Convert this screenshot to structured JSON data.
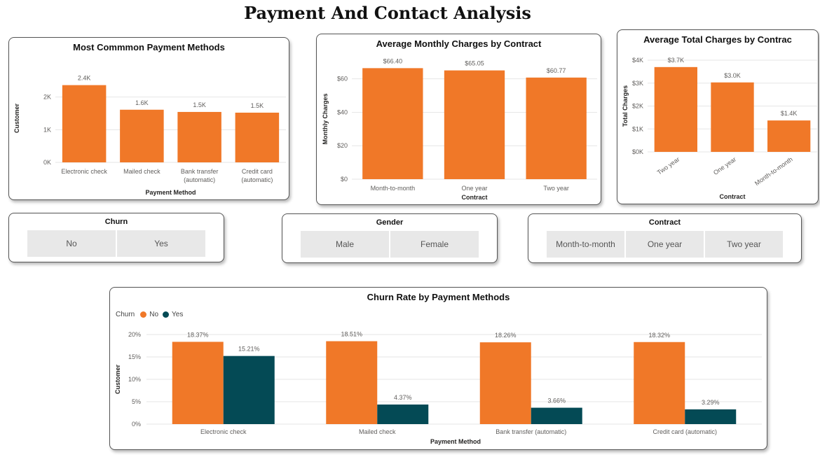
{
  "page": {
    "title": "Payment And Contact Analysis"
  },
  "colors": {
    "orange": "#F07828",
    "teal": "#044A55",
    "grid": "#e6e6e6",
    "text": "#605E5C"
  },
  "slicers": {
    "churn": {
      "title": "Churn",
      "options": [
        "No",
        "Yes"
      ]
    },
    "gender": {
      "title": "Gender",
      "options": [
        "Male",
        "Female"
      ]
    },
    "contract": {
      "title": "Contract",
      "options": [
        "Month-to-month",
        "One year",
        "Two year"
      ]
    }
  },
  "chart_data": [
    {
      "id": "payment",
      "type": "bar",
      "title": "Most Commmon Payment Methods",
      "xlabel": "Payment Method",
      "ylabel": "Customer",
      "categories": [
        [
          "Electronic check"
        ],
        [
          "Mailed check"
        ],
        [
          "Bank transfer",
          "(automatic)"
        ],
        [
          "Credit card",
          "(automatic)"
        ]
      ],
      "values": [
        2365,
        1612,
        1544,
        1522
      ],
      "value_labels": [
        "2.4K",
        "1.6K",
        "1.5K",
        "1.5K"
      ],
      "yticks": [
        0,
        1000,
        2000
      ],
      "ytick_labels": [
        "0K",
        "1K",
        "2K"
      ],
      "ylim": [
        0,
        2700
      ],
      "grid": true
    },
    {
      "id": "monthly",
      "type": "bar",
      "title": "Average Monthly Charges by Contract",
      "xlabel": "Contract",
      "ylabel": "Monthly Charges",
      "categories": [
        [
          "Month-to-month"
        ],
        [
          "One year"
        ],
        [
          "Two year"
        ]
      ],
      "values": [
        66.4,
        65.05,
        60.77
      ],
      "value_labels": [
        "$66.40",
        "$65.05",
        "$60.77"
      ],
      "yticks": [
        0,
        20,
        40,
        60
      ],
      "ytick_labels": [
        "$0",
        "$20",
        "$40",
        "$60"
      ],
      "ylim": [
        0,
        72
      ],
      "grid": true
    },
    {
      "id": "total",
      "type": "bar",
      "title": "Average Total Charges by Contrac",
      "xlabel": "Contract",
      "ylabel": "Total Charges",
      "categories": [
        [
          "Two year"
        ],
        [
          "One year"
        ],
        [
          "Month-to-month"
        ]
      ],
      "values": [
        3700,
        3030,
        1370
      ],
      "value_labels": [
        "$3.7K",
        "$3.0K",
        "$1.4K"
      ],
      "yticks": [
        0,
        1000,
        2000,
        3000,
        4000
      ],
      "ytick_labels": [
        "$0K",
        "$1K",
        "$2K",
        "$3K",
        "$4K"
      ],
      "ylim": [
        0,
        4000
      ],
      "grid": true,
      "rotated_x_labels": true
    },
    {
      "id": "churn",
      "type": "bar",
      "title": "Churn Rate by Payment Methods",
      "xlabel": "Payment Method",
      "ylabel": "Customer",
      "legend_title": "Churn",
      "legend_position": "top-left",
      "categories": [
        "Electronic check",
        "Mailed check",
        "Bank transfer (automatic)",
        "Credit card (automatic)"
      ],
      "series": [
        {
          "name": "No",
          "values": [
            18.37,
            18.51,
            18.26,
            18.32
          ],
          "value_labels": [
            "18.37%",
            "18.51%",
            "18.26%",
            "18.32%"
          ]
        },
        {
          "name": "Yes",
          "values": [
            15.21,
            4.37,
            3.66,
            3.29
          ],
          "value_labels": [
            "15.21%",
            "4.37%",
            "3.66%",
            "3.29%"
          ]
        }
      ],
      "yticks": [
        0,
        5,
        10,
        15,
        20
      ],
      "ytick_labels": [
        "0%",
        "5%",
        "10%",
        "15%",
        "20%"
      ],
      "ylim": [
        0,
        20
      ],
      "grid": true
    }
  ]
}
